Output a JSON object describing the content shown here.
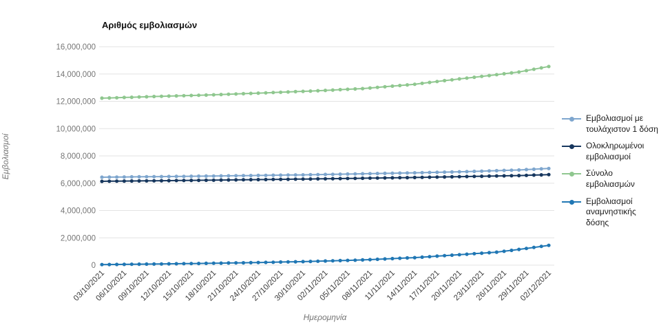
{
  "chart_data": {
    "type": "line",
    "title": "Αριθμός εμβολιασμών",
    "xlabel": "Ημερομηνία",
    "ylabel": "Εμβολιασμοί",
    "ylim": [
      0,
      16000000
    ],
    "grid": true,
    "legend_position": "right",
    "x_tick_every": 3,
    "y_ticks": [
      0,
      2000000,
      4000000,
      6000000,
      8000000,
      10000000,
      12000000,
      14000000,
      16000000
    ],
    "y_tick_labels": [
      "0",
      "2,000,000",
      "4,000,000",
      "6,000,000",
      "8,000,000",
      "10,000,000",
      "12,000,000",
      "14,000,000",
      "16,000,000"
    ],
    "categories": [
      "03/10/2021",
      "04/10/2021",
      "05/10/2021",
      "06/10/2021",
      "07/10/2021",
      "08/10/2021",
      "09/10/2021",
      "10/10/2021",
      "11/10/2021",
      "12/10/2021",
      "13/10/2021",
      "14/10/2021",
      "15/10/2021",
      "16/10/2021",
      "17/10/2021",
      "18/10/2021",
      "19/10/2021",
      "20/10/2021",
      "21/10/2021",
      "22/10/2021",
      "23/10/2021",
      "24/10/2021",
      "25/10/2021",
      "26/10/2021",
      "27/10/2021",
      "28/10/2021",
      "29/10/2021",
      "30/10/2021",
      "31/10/2021",
      "01/11/2021",
      "02/11/2021",
      "03/11/2021",
      "04/11/2021",
      "05/11/2021",
      "06/11/2021",
      "07/11/2021",
      "08/11/2021",
      "09/11/2021",
      "10/11/2021",
      "11/11/2021",
      "12/11/2021",
      "13/11/2021",
      "14/11/2021",
      "15/11/2021",
      "16/11/2021",
      "17/11/2021",
      "18/11/2021",
      "19/11/2021",
      "20/11/2021",
      "21/11/2021",
      "22/11/2021",
      "23/11/2021",
      "24/11/2021",
      "25/11/2021",
      "26/11/2021",
      "27/11/2021",
      "28/11/2021",
      "29/11/2021",
      "30/11/2021",
      "01/12/2021",
      "02/12/2021"
    ],
    "series": [
      {
        "name": "Εμβολιασμοί με τουλάχιστον 1 δόση",
        "color": "#7EA6CE",
        "values": [
          6440000,
          6446000,
          6451000,
          6457000,
          6463000,
          6469000,
          6474000,
          6480000,
          6486000,
          6491000,
          6497000,
          6503000,
          6509000,
          6514000,
          6520000,
          6527000,
          6534000,
          6541000,
          6549000,
          6556000,
          6563000,
          6570000,
          6577000,
          6584000,
          6591000,
          6599000,
          6606000,
          6613000,
          6620000,
          6630000,
          6640000,
          6650000,
          6660000,
          6670000,
          6680000,
          6690000,
          6700000,
          6710000,
          6720000,
          6730000,
          6740000,
          6750000,
          6760000,
          6773000,
          6786000,
          6799000,
          6811000,
          6824000,
          6837000,
          6850000,
          6867000,
          6884000,
          6901000,
          6919000,
          6936000,
          6953000,
          6970000,
          6998000,
          7025000,
          7053000,
          7080000
        ]
      },
      {
        "name": "Ολοκληρωμένοι εμβολιασμοί",
        "color": "#17375E",
        "values": [
          6140000,
          6146000,
          6151000,
          6157000,
          6163000,
          6169000,
          6174000,
          6180000,
          6186000,
          6191000,
          6197000,
          6203000,
          6209000,
          6214000,
          6220000,
          6226000,
          6233000,
          6239000,
          6246000,
          6252000,
          6259000,
          6265000,
          6271000,
          6278000,
          6284000,
          6291000,
          6297000,
          6304000,
          6310000,
          6318000,
          6326000,
          6334000,
          6341000,
          6349000,
          6357000,
          6365000,
          6373000,
          6381000,
          6389000,
          6396000,
          6404000,
          6412000,
          6420000,
          6430000,
          6440000,
          6450000,
          6460000,
          6470000,
          6480000,
          6490000,
          6500000,
          6510000,
          6520000,
          6530000,
          6540000,
          6550000,
          6560000,
          6578000,
          6595000,
          6613000,
          6630000
        ]
      },
      {
        "name": "Σύνολο εμβολιασμών",
        "color": "#8FC78F",
        "values": [
          12230000,
          12247000,
          12264000,
          12281000,
          12299000,
          12316000,
          12333000,
          12350000,
          12366000,
          12381000,
          12397000,
          12413000,
          12429000,
          12444000,
          12460000,
          12480000,
          12500000,
          12520000,
          12540000,
          12560000,
          12580000,
          12600000,
          12621000,
          12643000,
          12664000,
          12686000,
          12707000,
          12729000,
          12750000,
          12776000,
          12801000,
          12827000,
          12853000,
          12879000,
          12904000,
          12930000,
          12976000,
          13021000,
          13067000,
          13113000,
          13159000,
          13204000,
          13250000,
          13317000,
          13383000,
          13450000,
          13513000,
          13575000,
          13638000,
          13700000,
          13763000,
          13825000,
          13888000,
          13950000,
          14017000,
          14083000,
          14150000,
          14250000,
          14350000,
          14450000,
          14550000
        ]
      },
      {
        "name": "Εμβολιασμοί αναμνηστικής δόσης",
        "color": "#2077B4",
        "values": [
          40000,
          46000,
          51000,
          57000,
          63000,
          69000,
          74000,
          80000,
          87000,
          94000,
          101000,
          109000,
          116000,
          123000,
          130000,
          139000,
          147000,
          156000,
          164000,
          173000,
          181000,
          190000,
          201000,
          213000,
          224000,
          236000,
          247000,
          259000,
          270000,
          286000,
          301000,
          317000,
          333000,
          349000,
          364000,
          380000,
          404000,
          429000,
          453000,
          477000,
          501000,
          526000,
          550000,
          586000,
          621000,
          657000,
          693000,
          729000,
          764000,
          800000,
          838000,
          875000,
          913000,
          950000,
          1017000,
          1083000,
          1150000,
          1225000,
          1300000,
          1375000,
          1450000
        ]
      }
    ],
    "style": {
      "gridline_color": "#e3e3e3",
      "y_tick_label_color": "#757575",
      "x_tick_label_color": "#3c3c3c"
    }
  }
}
